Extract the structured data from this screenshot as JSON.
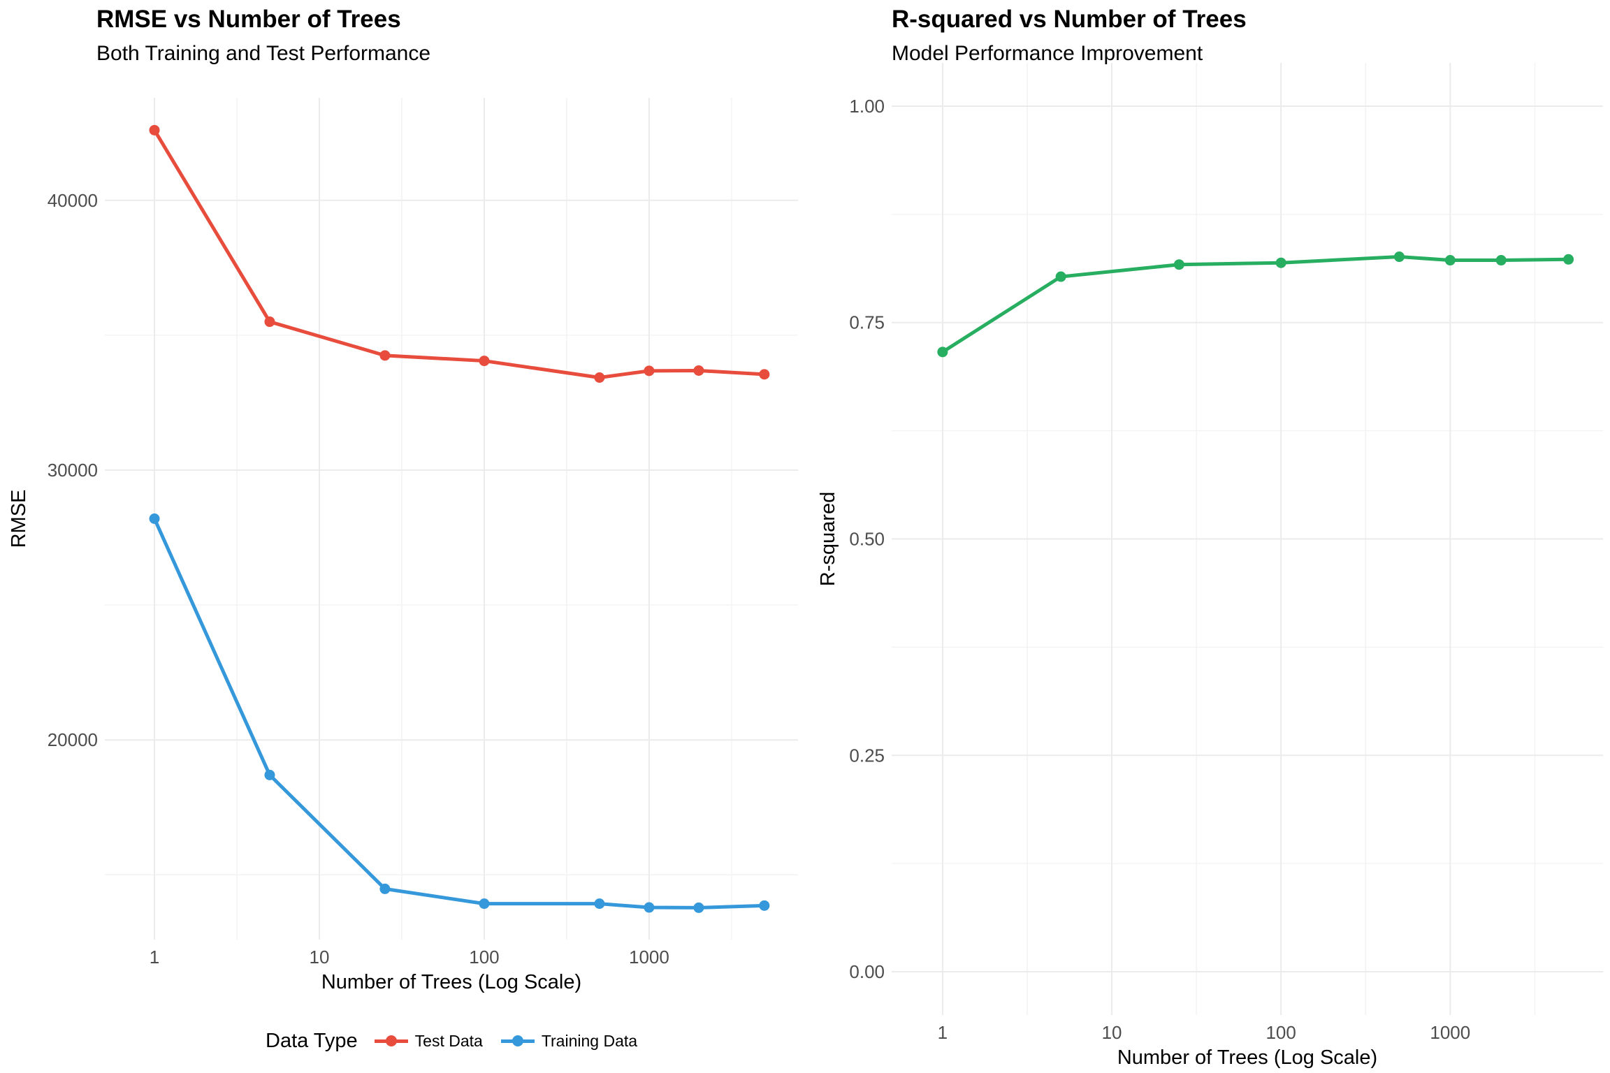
{
  "chart_data": [
    {
      "type": "line",
      "title": "RMSE vs Number of Trees",
      "subtitle": "Both Training and Test Performance",
      "xlabel": "Number of Trees (Log Scale)",
      "ylabel": "RMSE",
      "x_scale": "log10",
      "x_ticks": [
        1,
        10,
        100,
        1000
      ],
      "x_tick_labels": [
        "1",
        "10",
        "100",
        "1000"
      ],
      "y_ticks": [
        20000,
        30000,
        40000
      ],
      "y_tick_labels": [
        "20000",
        "30000",
        "40000"
      ],
      "xlim": [
        0.5,
        8000
      ],
      "ylim": [
        12600,
        43800
      ],
      "grid": true,
      "legend": {
        "title": "Data Type",
        "position": "bottom"
      },
      "x": [
        1,
        5,
        25,
        100,
        500,
        1000,
        2000,
        5000
      ],
      "series": [
        {
          "name": "Test Data",
          "color": "#E74C3C",
          "values": [
            42600,
            35500,
            34250,
            34050,
            33430,
            33680,
            33690,
            33550
          ]
        },
        {
          "name": "Training Data",
          "color": "#3498DB",
          "values": [
            28200,
            18700,
            14480,
            13930,
            13930,
            13790,
            13780,
            13860
          ]
        }
      ]
    },
    {
      "type": "line",
      "title": "R-squared vs Number of Trees",
      "subtitle": "Model Performance Improvement",
      "xlabel": "Number of Trees (Log Scale)",
      "ylabel": "R-squared",
      "x_scale": "log10",
      "x_ticks": [
        1,
        10,
        100,
        1000
      ],
      "x_tick_labels": [
        "1",
        "10",
        "100",
        "1000"
      ],
      "y_ticks": [
        0,
        0.25,
        0.5,
        0.75,
        1.0
      ],
      "y_tick_labels": [
        "0.00",
        "0.25",
        "0.50",
        "0.75",
        "1.00"
      ],
      "xlim": [
        0.5,
        8000
      ],
      "ylim": [
        -0.05,
        1.05
      ],
      "grid": true,
      "x": [
        1,
        5,
        25,
        100,
        500,
        1000,
        2000,
        5000
      ],
      "series": [
        {
          "color": "#27AE60",
          "values": [
            0.716,
            0.803,
            0.817,
            0.819,
            0.826,
            0.822,
            0.822,
            0.823
          ]
        }
      ]
    }
  ]
}
